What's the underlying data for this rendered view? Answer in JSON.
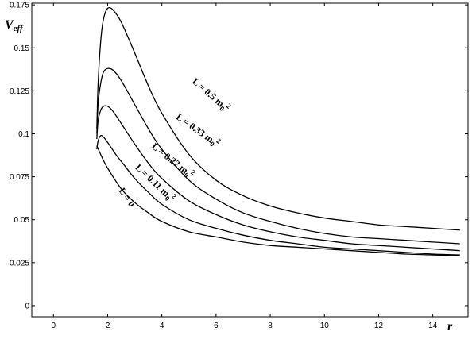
{
  "chart_data": {
    "type": "line",
    "title": "",
    "ylabel_main": "V",
    "ylabel_sub": "eff",
    "xlabel": "r",
    "xlim": [
      -0.8,
      15.3
    ],
    "ylim": [
      -0.0065,
      0.176
    ],
    "x_ticks": [
      0,
      2,
      4,
      6,
      8,
      10,
      12,
      14
    ],
    "y_ticks": [
      0,
      0.025,
      0.05,
      0.075,
      0.1,
      0.125,
      0.15,
      0.175
    ],
    "x_tick_labels": [
      "0",
      "2",
      "4",
      "6",
      "8",
      "10",
      "12",
      "14"
    ],
    "y_tick_labels": [
      "0",
      "0.025",
      "0.05",
      "0.075",
      "0.1",
      "0.125",
      "0.15",
      "0.175"
    ],
    "grid": false,
    "legend": "none (curves labelled inline)",
    "series": [
      {
        "name": "L = 0",
        "label_main": "L = 0",
        "label_sup": "",
        "color": "#000000",
        "x": [
          1.6,
          1.8,
          2.0,
          2.5,
          3.0,
          3.5,
          4.0,
          5.0,
          6.0,
          7.0,
          8.0,
          9.0,
          10.0,
          11.0,
          12.0,
          13.0,
          14.0,
          15.0
        ],
        "y": [
          0.093,
          0.086,
          0.08,
          0.068,
          0.06,
          0.054,
          0.049,
          0.043,
          0.04,
          0.037,
          0.035,
          0.034,
          0.033,
          0.032,
          0.031,
          0.03,
          0.0295,
          0.029
        ]
      },
      {
        "name": "L = 0.11 m0^2",
        "label_main": "L = 0.11 m",
        "label_sup": "2",
        "label_subscript": "0",
        "color": "#000000",
        "x": [
          1.6,
          1.65,
          1.75,
          1.85,
          2.0,
          2.3,
          2.6,
          3.0,
          3.5,
          4.0,
          5.0,
          6.0,
          7.0,
          8.0,
          9.0,
          10.0,
          11.0,
          12.0,
          13.0,
          14.0,
          15.0
        ],
        "y": [
          0.091,
          0.096,
          0.099,
          0.098,
          0.095,
          0.088,
          0.082,
          0.074,
          0.066,
          0.059,
          0.05,
          0.045,
          0.041,
          0.038,
          0.036,
          0.034,
          0.033,
          0.032,
          0.031,
          0.03,
          0.0295
        ]
      },
      {
        "name": "L = 0.22 m0^2",
        "label_main": "L = 0.22 m",
        "label_sup": "2",
        "label_subscript": "0",
        "color": "#000000",
        "x": [
          1.6,
          1.65,
          1.75,
          1.85,
          2.0,
          2.2,
          2.5,
          3.0,
          3.5,
          4.0,
          5.0,
          6.0,
          7.0,
          8.0,
          9.0,
          10.0,
          11.0,
          12.0,
          13.0,
          14.0,
          15.0
        ],
        "y": [
          0.097,
          0.108,
          0.114,
          0.116,
          0.116,
          0.113,
          0.106,
          0.094,
          0.083,
          0.074,
          0.061,
          0.053,
          0.047,
          0.043,
          0.04,
          0.038,
          0.036,
          0.035,
          0.034,
          0.033,
          0.032
        ]
      },
      {
        "name": "L = 0.33 m0^2",
        "label_main": "L = 0.33 m",
        "label_sup": "2",
        "label_subscript": "0",
        "color": "#000000",
        "x": [
          1.6,
          1.65,
          1.75,
          1.85,
          2.0,
          2.2,
          2.5,
          3.0,
          3.5,
          4.0,
          5.0,
          6.0,
          7.0,
          8.0,
          9.0,
          10.0,
          11.0,
          12.0,
          13.0,
          14.0,
          15.0
        ],
        "y": [
          0.1,
          0.118,
          0.13,
          0.136,
          0.138,
          0.137,
          0.131,
          0.117,
          0.103,
          0.091,
          0.073,
          0.062,
          0.054,
          0.049,
          0.045,
          0.042,
          0.04,
          0.039,
          0.038,
          0.037,
          0.036
        ]
      },
      {
        "name": "L = 0.5 m0^2",
        "label_main": "L = 0.5 m",
        "label_sup": "2",
        "label_subscript": "0",
        "color": "#000000",
        "x": [
          1.6,
          1.65,
          1.75,
          1.85,
          2.0,
          2.2,
          2.5,
          3.0,
          3.5,
          4.0,
          5.0,
          6.0,
          7.0,
          8.0,
          9.0,
          10.0,
          11.0,
          12.0,
          13.0,
          14.0,
          15.0
        ],
        "y": [
          0.103,
          0.13,
          0.155,
          0.167,
          0.173,
          0.172,
          0.165,
          0.147,
          0.128,
          0.112,
          0.088,
          0.073,
          0.064,
          0.058,
          0.054,
          0.051,
          0.049,
          0.047,
          0.046,
          0.045,
          0.044
        ]
      }
    ]
  }
}
